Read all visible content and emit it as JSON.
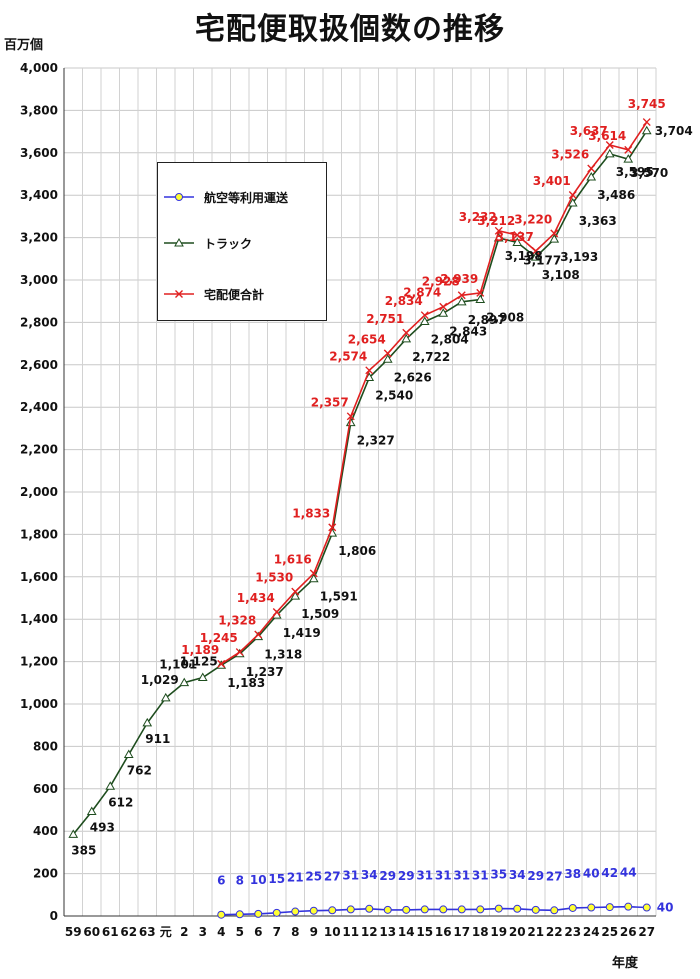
{
  "chart_data": {
    "type": "line",
    "title": "宅配便取扱個数の推移",
    "ylabel": "百万個",
    "xlabel": "年度",
    "ylim": [
      0,
      4000
    ],
    "yticks": [
      0,
      200,
      400,
      600,
      800,
      1000,
      1200,
      1400,
      1600,
      1800,
      2000,
      2200,
      2400,
      2600,
      2800,
      3000,
      3200,
      3400,
      3600,
      3800,
      4000
    ],
    "ytick_labels": [
      "0",
      "200",
      "400",
      "600",
      "800",
      "1,000",
      "1,200",
      "1,400",
      "1,600",
      "1,800",
      "2,000",
      "2,200",
      "2,400",
      "2,600",
      "2,800",
      "3,000",
      "3,200",
      "3,400",
      "3,600",
      "3,800",
      "4,000"
    ],
    "categories": [
      "59",
      "60",
      "61",
      "62",
      "63",
      "元",
      "2",
      "3",
      "4",
      "5",
      "6",
      "7",
      "8",
      "9",
      "10",
      "11",
      "12",
      "13",
      "14",
      "15",
      "16",
      "17",
      "18",
      "19",
      "20",
      "21",
      "22",
      "23",
      "24",
      "25",
      "26",
      "27"
    ],
    "grid": true,
    "legend_position": "upper-left inside plot",
    "series": [
      {
        "name": "航空等利用運送",
        "color": "#3333dd",
        "marker_fill": "#ffff33",
        "marker": "circle",
        "values": [
          null,
          null,
          null,
          null,
          null,
          null,
          null,
          null,
          6,
          8,
          10,
          15,
          21,
          25,
          27,
          31,
          34,
          29,
          29,
          31,
          31,
          31,
          31,
          35,
          34,
          29,
          27,
          38,
          40,
          42,
          44,
          40
        ],
        "labels": [
          "",
          "",
          "",
          "",
          "",
          "",
          "",
          "",
          "6",
          "8",
          "10",
          "15",
          "21",
          "25",
          "27",
          "31",
          "34",
          "29",
          "29",
          "31",
          "31",
          "31",
          "31",
          "35",
          "34",
          "29",
          "27",
          "38",
          "40",
          "42",
          "44",
          "40"
        ]
      },
      {
        "name": "トラック",
        "color": "#1e4d1e",
        "marker": "triangle",
        "values": [
          385,
          493,
          612,
          762,
          911,
          1029,
          1101,
          1125,
          1183,
          1237,
          1318,
          1419,
          1509,
          1591,
          1806,
          2327,
          2540,
          2626,
          2722,
          2804,
          2843,
          2897,
          2908,
          3198,
          3177,
          3108,
          3193,
          3363,
          3486,
          3595,
          3570,
          3704
        ],
        "labels": [
          "385",
          "493",
          "612",
          "762",
          "911",
          "1,029",
          "1,101",
          "1,125",
          "1,183",
          "1,237",
          "1,318",
          "1,419",
          "1,509",
          "1,591",
          "1,806",
          "2,327",
          "2,540",
          "2,626",
          "2,722",
          "2,804",
          "2,843",
          "2,897",
          "2,908",
          "3,198",
          "3,177",
          "3,108",
          "3,193",
          "3,363",
          "3,486",
          "3,595",
          "3,570",
          "3,704"
        ]
      },
      {
        "name": "宅配便合計",
        "color": "#e02020",
        "marker": "x",
        "values": [
          null,
          null,
          null,
          null,
          null,
          null,
          null,
          null,
          1189,
          1245,
          1328,
          1434,
          1530,
          1616,
          1833,
          2357,
          2574,
          2654,
          2751,
          2834,
          2874,
          2928,
          2939,
          3232,
          3212,
          3137,
          3220,
          3401,
          3526,
          3637,
          3614,
          3745
        ],
        "labels": [
          "",
          "",
          "",
          "",
          "",
          "",
          "",
          "",
          "1,189",
          "1,245",
          "1,328",
          "1,434",
          "1,530",
          "1,616",
          "1,833",
          "2,357",
          "2,574",
          "2,654",
          "2,751",
          "2,834",
          "2,874",
          "2,928",
          "2,939",
          "3,232",
          "3,212",
          "3,137",
          "3,220",
          "3,401",
          "3,526",
          "3,637",
          "3,614",
          "3,745"
        ]
      }
    ]
  }
}
